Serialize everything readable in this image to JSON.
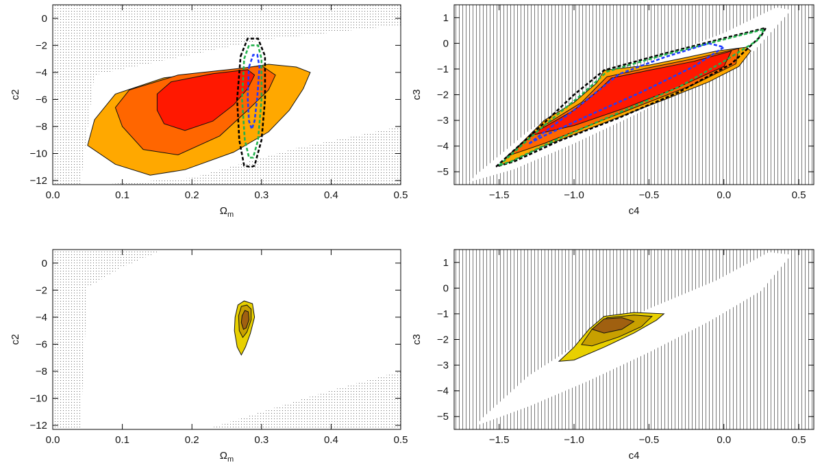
{
  "chart_data": [
    {
      "id": "top-left",
      "type": "contour",
      "xlabel": "Ω",
      "xlabel_sub": "m",
      "ylabel": "c2",
      "xlim": [
        0.0,
        0.5
      ],
      "ylim": [
        -12.3,
        1.0
      ],
      "xticks": [
        0.0,
        0.1,
        0.2,
        0.3,
        0.4,
        0.5
      ],
      "xtick_labels": [
        "0.0",
        "0.1",
        "0.2",
        "0.3",
        "0.4",
        "0.5"
      ],
      "yticks": [
        0,
        -2,
        -4,
        -6,
        -8,
        -10,
        -12
      ],
      "ytick_labels": [
        "0",
        "−2",
        "−4",
        "−6",
        "−8",
        "−10",
        "−12"
      ],
      "excluded_region": "dotted",
      "filled_contours": [
        {
          "level": "3sigma",
          "color": "#ffa800",
          "points": [
            [
              0.05,
              -9.4
            ],
            [
              0.06,
              -7.5
            ],
            [
              0.09,
              -5.6
            ],
            [
              0.16,
              -4.4
            ],
            [
              0.26,
              -3.8
            ],
            [
              0.31,
              -3.4
            ],
            [
              0.35,
              -3.6
            ],
            [
              0.37,
              -4.0
            ],
            [
              0.36,
              -5.2
            ],
            [
              0.34,
              -6.8
            ],
            [
              0.31,
              -8.4
            ],
            [
              0.26,
              -9.9
            ],
            [
              0.19,
              -11.2
            ],
            [
              0.14,
              -11.6
            ],
            [
              0.09,
              -10.8
            ]
          ]
        },
        {
          "level": "2sigma",
          "color": "#ff6600",
          "points": [
            [
              0.09,
              -6.6
            ],
            [
              0.11,
              -5.3
            ],
            [
              0.18,
              -4.2
            ],
            [
              0.27,
              -3.7
            ],
            [
              0.3,
              -3.5
            ],
            [
              0.32,
              -4.2
            ],
            [
              0.31,
              -5.3
            ],
            [
              0.28,
              -6.8
            ],
            [
              0.24,
              -8.7
            ],
            [
              0.18,
              -10.1
            ],
            [
              0.13,
              -9.7
            ],
            [
              0.1,
              -8.0
            ]
          ]
        },
        {
          "level": "1sigma",
          "color": "#ff1800",
          "points": [
            [
              0.15,
              -5.6
            ],
            [
              0.17,
              -4.7
            ],
            [
              0.23,
              -4.1
            ],
            [
              0.28,
              -3.8
            ],
            [
              0.29,
              -4.2
            ],
            [
              0.28,
              -5.2
            ],
            [
              0.26,
              -6.4
            ],
            [
              0.23,
              -7.6
            ],
            [
              0.19,
              -8.3
            ],
            [
              0.16,
              -7.8
            ],
            [
              0.15,
              -6.8
            ]
          ]
        }
      ],
      "probe_contours": [
        {
          "name": "black",
          "color": "#000000",
          "points": [
            [
              0.27,
              -2.8
            ],
            [
              0.28,
              -1.5
            ],
            [
              0.295,
              -1.5
            ],
            [
              0.305,
              -2.8
            ],
            [
              0.305,
              -6.0
            ],
            [
              0.3,
              -9.0
            ],
            [
              0.29,
              -10.9
            ],
            [
              0.285,
              -11.0
            ],
            [
              0.275,
              -10.9
            ],
            [
              0.268,
              -9.0
            ],
            [
              0.265,
              -6.0
            ]
          ]
        },
        {
          "name": "green",
          "color": "#22b14c",
          "points": [
            [
              0.275,
              -3.0
            ],
            [
              0.282,
              -2.0
            ],
            [
              0.295,
              -2.0
            ],
            [
              0.3,
              -3.0
            ],
            [
              0.3,
              -6.0
            ],
            [
              0.295,
              -9.0
            ],
            [
              0.288,
              -10.3
            ],
            [
              0.282,
              -10.3
            ],
            [
              0.276,
              -9.0
            ],
            [
              0.272,
              -6.0
            ]
          ]
        },
        {
          "name": "blue",
          "color": "#1e3cff",
          "points": [
            [
              0.282,
              -3.6
            ],
            [
              0.288,
              -2.7
            ],
            [
              0.294,
              -2.7
            ],
            [
              0.297,
              -3.6
            ],
            [
              0.294,
              -5.8
            ],
            [
              0.29,
              -7.6
            ],
            [
              0.286,
              -8.2
            ],
            [
              0.282,
              -7.6
            ],
            [
              0.28,
              -5.8
            ]
          ]
        }
      ]
    },
    {
      "id": "top-right",
      "type": "contour",
      "xlabel": "c4",
      "ylabel": "c3",
      "xlim": [
        -1.8,
        0.6
      ],
      "ylim": [
        -5.5,
        1.5
      ],
      "xticks": [
        -1.5,
        -1.0,
        -0.5,
        0.0,
        0.5
      ],
      "xtick_labels": [
        "−1.5",
        "−1.0",
        "−0.5",
        "0.0",
        "0.5"
      ],
      "yticks": [
        1,
        0,
        -1,
        -2,
        -3,
        -4,
        -5
      ],
      "ytick_labels": [
        "1",
        "0",
        "−1",
        "−2",
        "−3",
        "−4",
        "−5"
      ],
      "excluded_region": "vertical-hatch",
      "allowed_band": [
        [
          -1.7,
          -5.4
        ],
        [
          -1.4,
          -4.9
        ],
        [
          -1.0,
          -3.9
        ],
        [
          -0.6,
          -2.8
        ],
        [
          -0.2,
          -1.6
        ],
        [
          0.2,
          -0.3
        ],
        [
          0.45,
          1.3
        ],
        [
          0.35,
          1.4
        ],
        [
          0.0,
          0.4
        ],
        [
          -0.45,
          -0.6
        ],
        [
          -0.9,
          -1.9
        ],
        [
          -1.3,
          -3.4
        ],
        [
          -1.65,
          -5.1
        ]
      ],
      "filled_contours": [
        {
          "level": "3sigma",
          "color": "#ffa800",
          "points": [
            [
              -1.5,
              -4.75
            ],
            [
              -1.2,
              -3.0
            ],
            [
              -1.0,
              -2.3
            ],
            [
              -0.85,
              -1.55
            ],
            [
              -0.8,
              -1.05
            ],
            [
              -0.5,
              -0.85
            ],
            [
              -0.25,
              -0.55
            ],
            [
              -0.05,
              -0.3
            ],
            [
              0.15,
              -0.15
            ],
            [
              0.18,
              -0.3
            ],
            [
              0.1,
              -0.9
            ],
            [
              -0.1,
              -1.5
            ],
            [
              -0.4,
              -2.2
            ],
            [
              -0.8,
              -3.1
            ],
            [
              -1.2,
              -4.0
            ],
            [
              -1.42,
              -4.6
            ]
          ]
        },
        {
          "level": "2sigma",
          "color": "#ff6600",
          "points": [
            [
              -1.45,
              -4.4
            ],
            [
              -1.2,
              -3.2
            ],
            [
              -0.95,
              -2.3
            ],
            [
              -0.78,
              -1.3
            ],
            [
              -0.5,
              -0.95
            ],
            [
              -0.2,
              -0.6
            ],
            [
              0.1,
              -0.2
            ],
            [
              0.08,
              -0.8
            ],
            [
              -0.2,
              -1.6
            ],
            [
              -0.55,
              -2.4
            ],
            [
              -0.9,
              -3.2
            ],
            [
              -1.2,
              -3.9
            ]
          ]
        },
        {
          "level": "1sigma",
          "color": "#ff1800",
          "points": [
            [
              -1.3,
              -3.6
            ],
            [
              -1.0,
              -2.6
            ],
            [
              -0.85,
              -1.9
            ],
            [
              -0.75,
              -1.35
            ],
            [
              -0.5,
              -1.05
            ],
            [
              -0.2,
              -0.7
            ],
            [
              0.05,
              -0.3
            ],
            [
              0.0,
              -0.9
            ],
            [
              -0.3,
              -1.7
            ],
            [
              -0.65,
              -2.5
            ],
            [
              -1.0,
              -3.2
            ]
          ]
        }
      ],
      "probe_contours": [
        {
          "name": "black",
          "color": "#000000",
          "points": [
            [
              -1.52,
              -4.8
            ],
            [
              -1.2,
              -3.1
            ],
            [
              -1.0,
              -2.0
            ],
            [
              -0.8,
              -1.05
            ],
            [
              -0.4,
              -0.4
            ],
            [
              0.0,
              0.2
            ],
            [
              0.28,
              0.6
            ],
            [
              0.25,
              0.3
            ],
            [
              0.05,
              -0.8
            ],
            [
              -0.3,
              -1.9
            ],
            [
              -0.7,
              -2.9
            ],
            [
              -1.1,
              -3.8
            ],
            [
              -1.4,
              -4.6
            ]
          ]
        },
        {
          "name": "green",
          "color": "#22b14c",
          "points": [
            [
              -1.5,
              -4.75
            ],
            [
              -1.2,
              -3.2
            ],
            [
              -0.95,
              -2.0
            ],
            [
              -0.78,
              -1.1
            ],
            [
              -0.4,
              -0.45
            ],
            [
              0.0,
              0.15
            ],
            [
              0.27,
              0.55
            ],
            [
              0.22,
              0.1
            ],
            [
              0.0,
              -0.7
            ],
            [
              -0.3,
              -1.7
            ],
            [
              -0.7,
              -2.7
            ],
            [
              -1.1,
              -3.7
            ],
            [
              -1.42,
              -4.6
            ]
          ]
        },
        {
          "name": "blue",
          "color": "#1e3cff",
          "points": [
            [
              -1.3,
              -3.9
            ],
            [
              -1.0,
              -2.6
            ],
            [
              -0.85,
              -1.9
            ],
            [
              -0.7,
              -1.2
            ],
            [
              -0.4,
              -0.55
            ],
            [
              -0.1,
              0.0
            ],
            [
              0.0,
              -0.15
            ],
            [
              -0.2,
              -0.9
            ],
            [
              -0.55,
              -1.9
            ],
            [
              -0.9,
              -2.8
            ],
            [
              -1.2,
              -3.6
            ]
          ]
        }
      ]
    },
    {
      "id": "bottom-left",
      "type": "contour",
      "xlabel": "Ω",
      "xlabel_sub": "m",
      "ylabel": "c2",
      "xlim": [
        0.0,
        0.5
      ],
      "ylim": [
        -12.3,
        1.0
      ],
      "xticks": [
        0.0,
        0.1,
        0.2,
        0.3,
        0.4,
        0.5
      ],
      "xtick_labels": [
        "0.0",
        "0.1",
        "0.2",
        "0.3",
        "0.4",
        "0.5"
      ],
      "yticks": [
        0,
        -2,
        -4,
        -6,
        -8,
        -10,
        -12
      ],
      "ytick_labels": [
        "0",
        "−2",
        "−4",
        "−6",
        "−8",
        "−10",
        "−12"
      ],
      "excluded_region": "dotted",
      "filled_contours": [
        {
          "level": "3sigma",
          "color": "#e8d000",
          "points": [
            [
              0.262,
              -4.0
            ],
            [
              0.266,
              -3.1
            ],
            [
              0.275,
              -2.8
            ],
            [
              0.287,
              -3.0
            ],
            [
              0.29,
              -4.0
            ],
            [
              0.284,
              -5.2
            ],
            [
              0.277,
              -6.2
            ],
            [
              0.271,
              -6.8
            ],
            [
              0.265,
              -6.2
            ],
            [
              0.261,
              -5.0
            ]
          ]
        },
        {
          "level": "2sigma",
          "color": "#c8a000",
          "points": [
            [
              0.267,
              -3.9
            ],
            [
              0.271,
              -3.2
            ],
            [
              0.279,
              -3.1
            ],
            [
              0.285,
              -3.4
            ],
            [
              0.285,
              -4.2
            ],
            [
              0.279,
              -5.1
            ],
            [
              0.273,
              -5.5
            ],
            [
              0.268,
              -5.0
            ]
          ]
        },
        {
          "level": "1sigma",
          "color": "#a06010",
          "points": [
            [
              0.272,
              -3.9
            ],
            [
              0.276,
              -3.5
            ],
            [
              0.281,
              -3.6
            ],
            [
              0.282,
              -4.2
            ],
            [
              0.278,
              -4.8
            ],
            [
              0.274,
              -4.9
            ],
            [
              0.271,
              -4.4
            ]
          ]
        }
      ]
    },
    {
      "id": "bottom-right",
      "type": "contour",
      "xlabel": "c4",
      "ylabel": "c3",
      "xlim": [
        -1.8,
        0.6
      ],
      "ylim": [
        -5.5,
        1.5
      ],
      "xticks": [
        -1.5,
        -1.0,
        -0.5,
        0.0,
        0.5
      ],
      "xtick_labels": [
        "−1.5",
        "−1.0",
        "−0.5",
        "0.0",
        "0.5"
      ],
      "yticks": [
        1,
        0,
        -1,
        -2,
        -3,
        -4,
        -5
      ],
      "ytick_labels": [
        "1",
        "0",
        "−1",
        "−2",
        "−3",
        "−4",
        "−5"
      ],
      "excluded_region": "vertical-hatch",
      "allowed_band": [
        [
          -1.65,
          -5.35
        ],
        [
          -1.3,
          -4.6
        ],
        [
          -0.9,
          -3.6
        ],
        [
          -0.5,
          -2.5
        ],
        [
          -0.1,
          -1.3
        ],
        [
          0.25,
          -0.1
        ],
        [
          0.45,
          1.3
        ],
        [
          0.3,
          1.4
        ],
        [
          -0.05,
          0.3
        ],
        [
          -0.5,
          -0.8
        ],
        [
          -0.95,
          -2.1
        ],
        [
          -1.3,
          -3.4
        ],
        [
          -1.62,
          -5.1
        ]
      ],
      "filled_contours": [
        {
          "level": "3sigma",
          "color": "#e8d000",
          "points": [
            [
              -1.1,
              -2.85
            ],
            [
              -1.0,
              -2.3
            ],
            [
              -0.9,
              -1.6
            ],
            [
              -0.8,
              -1.1
            ],
            [
              -0.6,
              -0.95
            ],
            [
              -0.4,
              -1.0
            ],
            [
              -0.45,
              -1.25
            ],
            [
              -0.6,
              -1.75
            ],
            [
              -0.8,
              -2.3
            ],
            [
              -1.0,
              -2.8
            ]
          ]
        },
        {
          "level": "2sigma",
          "color": "#c8a000",
          "points": [
            [
              -0.95,
              -2.2
            ],
            [
              -0.88,
              -1.6
            ],
            [
              -0.78,
              -1.15
            ],
            [
              -0.6,
              -1.05
            ],
            [
              -0.48,
              -1.1
            ],
            [
              -0.55,
              -1.5
            ],
            [
              -0.7,
              -1.9
            ],
            [
              -0.88,
              -2.25
            ]
          ]
        },
        {
          "level": "1sigma",
          "color": "#a06010",
          "points": [
            [
              -0.88,
              -1.6
            ],
            [
              -0.8,
              -1.2
            ],
            [
              -0.68,
              -1.15
            ],
            [
              -0.6,
              -1.3
            ],
            [
              -0.68,
              -1.6
            ],
            [
              -0.8,
              -1.75
            ]
          ]
        }
      ]
    }
  ]
}
